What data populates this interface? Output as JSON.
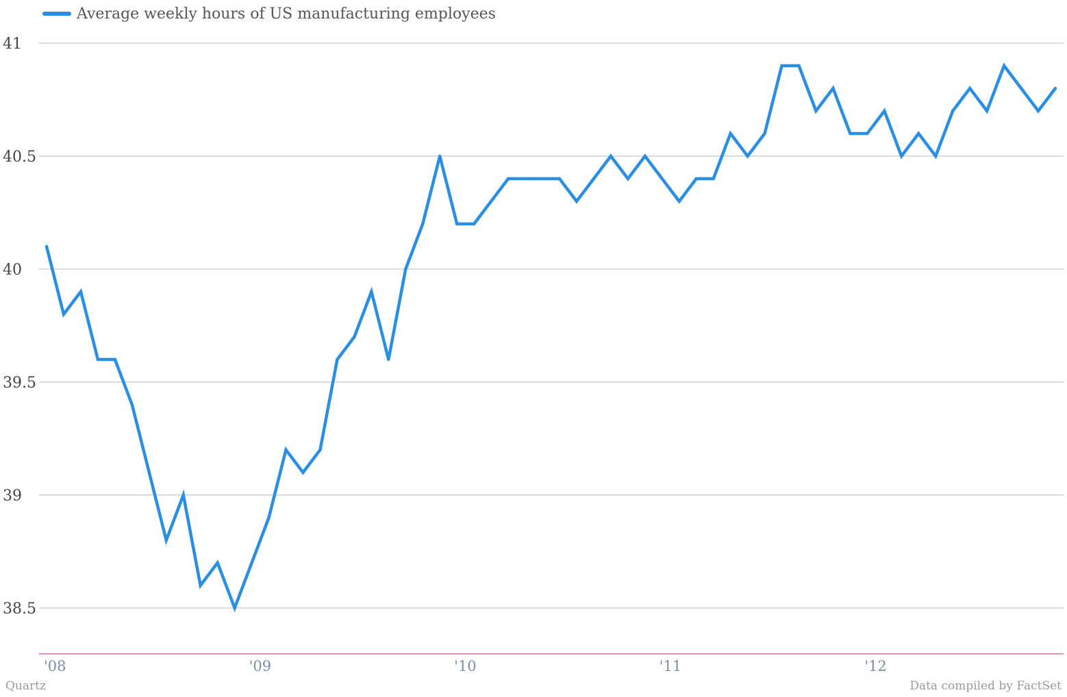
{
  "chart_data": {
    "type": "line",
    "title": "",
    "xlabel": "",
    "ylabel": "",
    "ylim": [
      38.3,
      41.0
    ],
    "y_ticks": [
      "41",
      "40.5",
      "40",
      "39.5",
      "39",
      "38.5"
    ],
    "y_tick_values": [
      41,
      40.5,
      40,
      39.5,
      39,
      38.5
    ],
    "x_tick_labels": [
      "'08",
      "'09",
      "'10",
      "'11",
      "'12"
    ],
    "x_tick_months": [
      "2008-01",
      "2009-01",
      "2010-01",
      "2011-01",
      "2012-01"
    ],
    "grid": "horizontal",
    "legend_position": "top-left",
    "x": [
      "2008-01",
      "2008-02",
      "2008-03",
      "2008-04",
      "2008-05",
      "2008-06",
      "2008-07",
      "2008-08",
      "2008-09",
      "2008-10",
      "2008-11",
      "2008-12",
      "2009-01",
      "2009-02",
      "2009-03",
      "2009-04",
      "2009-05",
      "2009-06",
      "2009-07",
      "2009-08",
      "2009-09",
      "2009-10",
      "2009-11",
      "2009-12",
      "2010-01",
      "2010-02",
      "2010-03",
      "2010-04",
      "2010-05",
      "2010-06",
      "2010-07",
      "2010-08",
      "2010-09",
      "2010-10",
      "2010-11",
      "2010-12",
      "2011-01",
      "2011-02",
      "2011-03",
      "2011-04",
      "2011-05",
      "2011-06",
      "2011-07",
      "2011-08",
      "2011-09",
      "2011-10",
      "2011-11",
      "2011-12",
      "2012-01",
      "2012-02",
      "2012-03",
      "2012-04",
      "2012-05",
      "2012-06",
      "2012-07",
      "2012-08",
      "2012-09",
      "2012-10",
      "2012-11",
      "2012-12"
    ],
    "series": [
      {
        "name": "Average weekly hours of US manufacturing employees",
        "color": "#2a8ee2",
        "values": [
          40.1,
          39.8,
          39.9,
          39.6,
          39.6,
          39.4,
          39.1,
          38.8,
          39.0,
          38.6,
          38.7,
          38.5,
          38.7,
          38.9,
          39.2,
          39.1,
          39.2,
          39.6,
          39.7,
          39.9,
          39.6,
          40.0,
          40.2,
          40.5,
          40.2,
          40.2,
          40.3,
          40.4,
          40.4,
          40.4,
          40.4,
          40.3,
          40.4,
          40.5,
          40.4,
          40.5,
          40.4,
          40.3,
          40.4,
          40.4,
          40.6,
          40.5,
          40.6,
          40.9,
          40.9,
          40.7,
          40.8,
          40.6,
          40.6,
          40.7,
          40.5,
          40.6,
          40.5,
          40.7,
          40.8,
          40.7,
          40.9,
          40.8,
          40.7,
          40.8
        ]
      }
    ]
  },
  "colors": {
    "series_line": "#2a8ee2",
    "gridline": "#b8b8b8",
    "baseline": "#d966c6",
    "y_tick_text": "#444444",
    "x_tick_text": "#7a8fa6",
    "footer_text": "#9a9a9a"
  },
  "footer": {
    "source_left": "Quartz",
    "source_right": "Data compiled by FactSet"
  }
}
